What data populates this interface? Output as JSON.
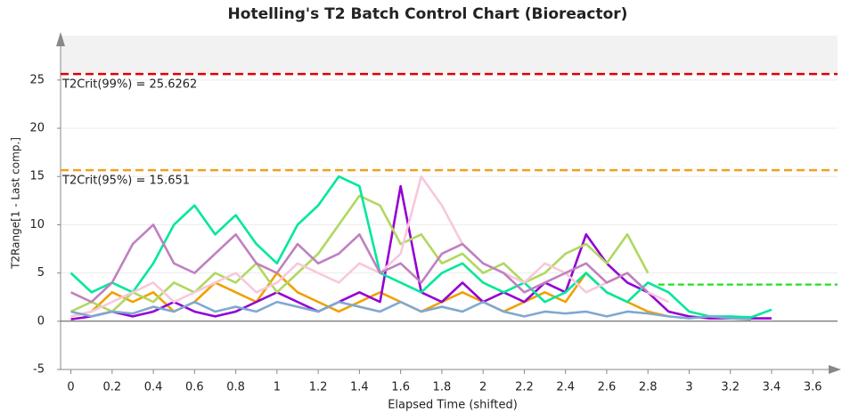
{
  "chart_data": {
    "type": "line",
    "title": "Hotelling's T2 Batch Control Chart (Bioreactor)",
    "x_label": "Elapsed Time (shifted)",
    "y_label": "T2Range[1 - Last comp.]",
    "xlim": [
      -0.05,
      3.72
    ],
    "ylim": [
      -5,
      29.6
    ],
    "xticks": [
      0,
      0.2,
      0.4,
      0.6,
      0.8,
      1,
      1.2,
      1.4,
      1.6,
      1.8,
      2,
      2.2,
      2.4,
      2.6,
      2.8,
      3,
      3.2,
      3.4,
      3.6
    ],
    "yticks": [
      -5,
      0,
      5,
      10,
      15,
      20,
      25
    ],
    "grid": true,
    "thresholds": [
      {
        "label": "T2Crit(99%) = 25.6262",
        "value": 25.6262,
        "color": "#e00000"
      },
      {
        "label": "T2Crit(95%) = 15.651",
        "value": 15.651,
        "color": "#f0a020"
      }
    ],
    "target": {
      "value": 3.8,
      "x": [
        2.85,
        3.72
      ],
      "color": "#20e020"
    },
    "x": [
      0,
      0.1,
      0.2,
      0.3,
      0.4,
      0.5,
      0.6,
      0.7,
      0.8,
      0.9,
      1,
      1.1,
      1.2,
      1.3,
      1.4,
      1.5,
      1.6,
      1.7,
      1.8,
      1.9,
      2,
      2.1,
      2.2,
      2.3,
      2.4,
      2.5,
      2.6,
      2.7,
      2.8,
      2.9,
      3,
      3.1,
      3.2,
      3.3,
      3.4
    ],
    "series": [
      {
        "color": "#f0a000",
        "values": [
          0.5,
          1,
          3,
          2,
          3,
          1,
          2,
          4,
          3,
          2,
          5,
          3,
          2,
          1,
          2,
          3,
          2,
          1,
          2,
          3,
          2,
          1,
          2,
          3,
          2,
          5,
          3,
          2,
          1,
          0.5,
          null,
          null,
          null,
          null,
          null
        ]
      },
      {
        "color": "#9400d3",
        "values": [
          0.2,
          0.5,
          1,
          0.5,
          1,
          2,
          1,
          0.5,
          1,
          2,
          3,
          2,
          1,
          2,
          3,
          2,
          14,
          3,
          2,
          4,
          2,
          3,
          2,
          4,
          3,
          9,
          6,
          4,
          3,
          1,
          0.5,
          0.3,
          0.3,
          0.3,
          0.3
        ]
      },
      {
        "color": "#b0d860",
        "values": [
          1,
          2,
          1,
          3,
          2,
          4,
          3,
          5,
          4,
          6,
          3,
          5,
          7,
          10,
          13,
          12,
          8,
          9,
          6,
          7,
          5,
          6,
          4,
          5,
          7,
          8,
          6,
          9,
          5,
          null,
          null,
          null,
          null,
          null,
          null
        ]
      },
      {
        "color": "#00e89a",
        "values": [
          5,
          3,
          4,
          3,
          6,
          10,
          12,
          9,
          11,
          8,
          6,
          10,
          12,
          15,
          14,
          5,
          4,
          3,
          5,
          6,
          4,
          3,
          4,
          2,
          3,
          5,
          3,
          2,
          4,
          3,
          1,
          0.5,
          0.5,
          0.4,
          1.2
        ]
      },
      {
        "color": "#f8c8dc",
        "values": [
          0.5,
          1,
          2,
          3,
          4,
          2,
          3,
          4,
          5,
          3,
          4,
          6,
          5,
          4,
          6,
          5,
          7,
          15,
          12,
          8,
          6,
          5,
          4,
          6,
          5,
          3,
          4,
          5,
          3,
          2,
          null,
          null,
          null,
          null,
          null
        ]
      },
      {
        "color": "#c080c0",
        "values": [
          3,
          2,
          4,
          8,
          10,
          6,
          5,
          7,
          9,
          6,
          5,
          8,
          6,
          7,
          9,
          5,
          6,
          4,
          7,
          8,
          6,
          5,
          3,
          4,
          5,
          6,
          4,
          5,
          3,
          null,
          null,
          null,
          null,
          null,
          null
        ]
      },
      {
        "color": "#80a8d0",
        "values": [
          1,
          0.5,
          1,
          0.8,
          1.5,
          1,
          2,
          1,
          1.5,
          1,
          2,
          1.5,
          1,
          2,
          1.5,
          1,
          2,
          1,
          1.5,
          1,
          2,
          1,
          0.5,
          1,
          0.8,
          1,
          0.5,
          1,
          0.8,
          0.5,
          0.3,
          0.5,
          0.3,
          0.2,
          null
        ]
      }
    ]
  }
}
